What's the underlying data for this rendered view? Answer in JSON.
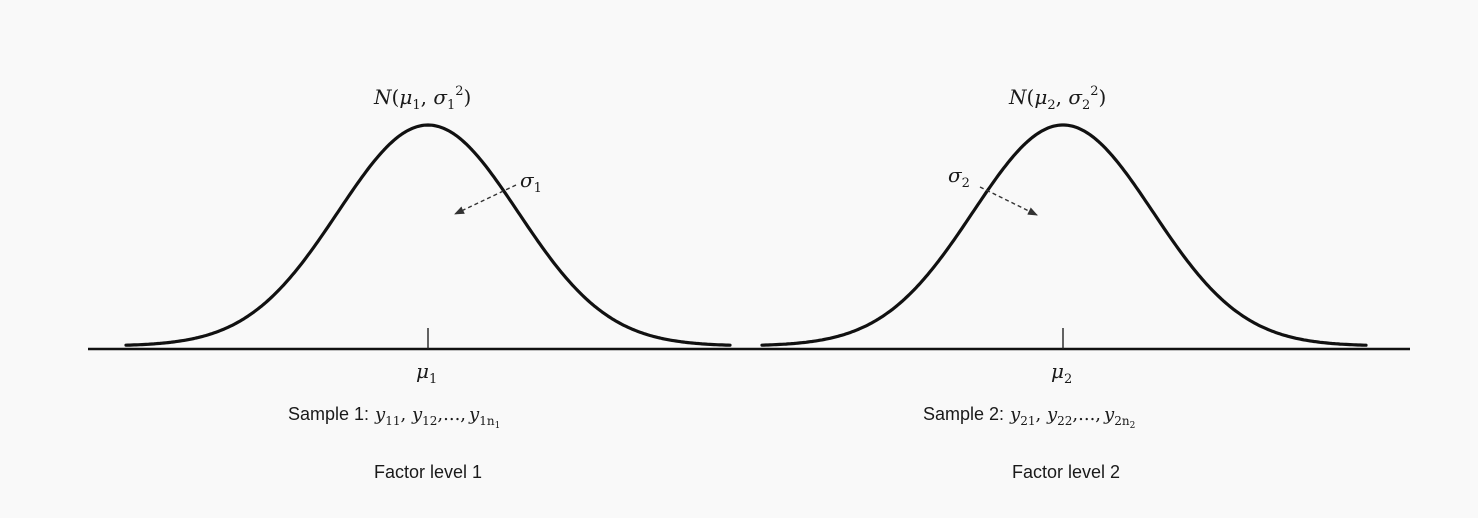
{
  "distributions": [
    {
      "label_N": "N",
      "label_mu": "μ",
      "label_mu_sub": "1",
      "label_sigma": "σ",
      "label_sigma_sub": "1",
      "label_sup": "2",
      "sigma_label": "σ",
      "sigma_sub": "1",
      "mean_label": "μ",
      "mean_sub": "1",
      "sample_prefix": "Sample 1:",
      "sample_y": "y",
      "sample_sub_1": "11",
      "sample_sub_2": "12",
      "sample_ellipsis": ",...,",
      "sample_sub_last": "1n",
      "sample_sub_last_sub": "1",
      "factor_label": "Factor level 1"
    },
    {
      "label_N": "N",
      "label_mu": "μ",
      "label_mu_sub": "2",
      "label_sigma": "σ",
      "label_sigma_sub": "2",
      "label_sup": "2",
      "sigma_label": "σ",
      "sigma_sub": "2",
      "mean_label": "μ",
      "mean_sub": "2",
      "sample_prefix": "Sample 2:",
      "sample_y": "y",
      "sample_sub_1": "21",
      "sample_sub_2": "22",
      "sample_ellipsis": ",...,",
      "sample_sub_last": "2n",
      "sample_sub_last_sub": "2",
      "factor_label": "Factor level 2"
    }
  ],
  "colors": {
    "line": "#111111",
    "background": "#f9f9f9",
    "text": "#1a1a1a"
  }
}
